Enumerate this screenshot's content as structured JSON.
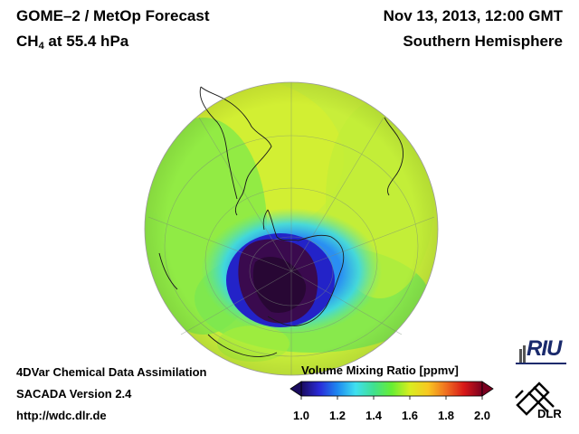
{
  "header": {
    "title_line1": "GOME–2 / MetOp Forecast",
    "species_prefix": "CH",
    "species_subscript": "4",
    "species_suffix": " at 55.4 hPa",
    "datetime": "Nov 13, 2013, 12:00 GMT",
    "region": "Southern Hemisphere"
  },
  "footer": {
    "line1": "4DVar Chemical Data Assimilation",
    "line2": "SACADA Version 2.4",
    "line3": "http://wdc.dlr.de"
  },
  "colorbar": {
    "title": "Volume Mixing Ratio [ppmv]",
    "min": 1.0,
    "max": 2.0,
    "tick_labels": [
      "1.0",
      "1.2",
      "1.4",
      "1.6",
      "1.8",
      "2.0"
    ],
    "colors": [
      "#1a0b5e",
      "#2a2ad8",
      "#1e88f0",
      "#3fe0f0",
      "#40e090",
      "#66ee33",
      "#d8ee20",
      "#f8c820",
      "#f07020",
      "#d81818",
      "#7a0020"
    ]
  },
  "map": {
    "projection": "orthographic",
    "hemisphere": "south",
    "background_value": 1.62,
    "low_value": 1.0,
    "ring_value": 1.38
  },
  "logos": {
    "riu": "RIU",
    "dlr": "DLR"
  }
}
